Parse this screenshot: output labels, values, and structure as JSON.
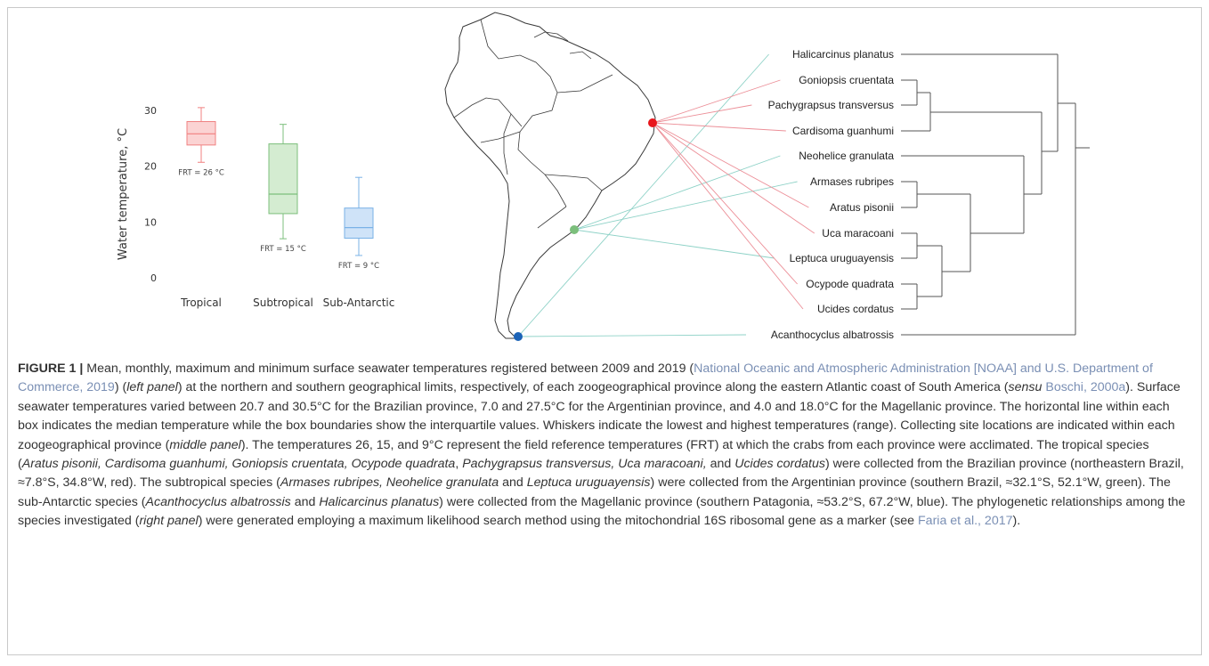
{
  "chart_data": {
    "type": "box",
    "ylabel": "Water temperature, °C",
    "ylim": [
      0,
      30
    ],
    "yticks": [
      "0",
      "10",
      "20",
      "30"
    ],
    "categories": [
      "Tropical",
      "Subtropical",
      "Sub-Antarctic"
    ],
    "boxes": [
      {
        "category": "Tropical",
        "min": 20.7,
        "q1": 23.8,
        "median": 25.8,
        "q3": 28.0,
        "max": 30.5,
        "label": "FRT = 26 °C",
        "color": "#f08080",
        "fill": "#fbd3d3"
      },
      {
        "category": "Subtropical",
        "min": 7.0,
        "q1": 11.5,
        "median": 15.0,
        "q3": 24.0,
        "max": 27.5,
        "label": "FRT = 15 °C",
        "color": "#7cbf7c",
        "fill": "#d4ecd1"
      },
      {
        "category": "Sub-Antarctic",
        "min": 4.0,
        "q1": 7.1,
        "median": 9.0,
        "q3": 12.5,
        "max": 18.0,
        "label": "FRT = 9 °C",
        "color": "#7ab2e6",
        "fill": "#cfe3f8"
      }
    ]
  },
  "map": {
    "sites": [
      {
        "name": "red-site",
        "color": "#e8151b"
      },
      {
        "name": "green-site",
        "color": "#7cbf7c"
      },
      {
        "name": "blue-site",
        "color": "#1c63b7"
      }
    ]
  },
  "tree": {
    "species": [
      "Halicarcinus planatus",
      "Goniopsis cruentata",
      "Pachygrapsus transversus",
      "Cardisoma guanhumi",
      "Neohelice granulata",
      "Armases rubripes",
      "Aratus pisonii",
      "Uca maracoani",
      "Leptuca uruguayensis",
      "Ocypode quadrata",
      "Ucides cordatus",
      "Acanthocyclus albatrossis"
    ],
    "site_of_species": [
      "blue",
      "red",
      "red",
      "red",
      "green",
      "green",
      "red",
      "red",
      "green",
      "red",
      "red",
      "blue"
    ]
  },
  "caption": {
    "label": "FIGURE 1 |",
    "p1": " Mean, monthly, maximum and minimum surface seawater temperatures registered between 2009 and 2019 (",
    "ref1": "National Oceanic and Atmospheric Administration [NOAA] and U.S. Department of Commerce, 2019",
    "p2": ") (",
    "left_panel": "left panel",
    "p3": ") at the northern and southern geographical limits, respectively, of each zoogeographical province along the eastern Atlantic coast of South America (",
    "sensu": "sensu",
    "p4": " ",
    "ref2": "Boschi, 2000a",
    "p5": "). Surface seawater temperatures varied between 20.7 and 30.5°C for the Brazilian province, 7.0 and 27.5°C for the Argentinian province, and 4.0 and 18.0°C for the Magellanic province. The horizontal line within each box indicates the median temperature while the box boundaries show the interquartile values. Whiskers indicate the lowest and highest temperatures (range). Collecting site locations are indicated within each zoogeographical province (",
    "middle_panel": "middle panel",
    "p6": "). The temperatures 26, 15, and 9°C represent the field reference temperatures (FRT) at which the crabs from each province were acclimated. The tropical species (",
    "trop_species": "Aratus pisonii, Cardisoma guanhumi, Goniopsis cruentata, Ocypode quadrata",
    "p7": ", ",
    "trop_species2": "Pachygrapsus transversus, Uca maracoani,",
    "p8": " and ",
    "trop_species3": "Ucides cordatus",
    "p9": ") were collected from the Brazilian province (northeastern Brazil, ≈7.8°S, 34.8°W, red). The subtropical species (",
    "sub_species": "Armases rubripes, Neohelice granulata",
    "p10": " and ",
    "sub_species2": "Leptuca uruguayensis",
    "p11": ") were collected from the Argentinian province (southern Brazil, ≈32.1°S, 52.1°W, green). The sub-Antarctic species (",
    "ant_species": "Acanthocyclus albatrossis",
    "p12": " and ",
    "ant_species2": "Halicarcinus planatus",
    "p13": ") were collected from the Magellanic province (southern Patagonia, ≈53.2°S, 67.2°W, blue). The phylogenetic relationships among the species investigated (",
    "right_panel": "right panel",
    "p14": ") were generated employing a maximum likelihood search method using the mitochondrial 16S ribosomal gene as a marker (see ",
    "ref3": "Faria et al., 2017",
    "p15": ")."
  }
}
